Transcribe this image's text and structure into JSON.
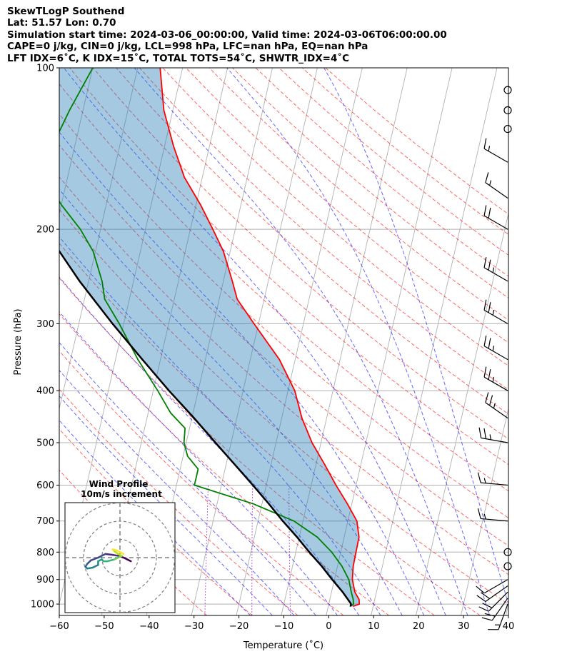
{
  "chart_data": {
    "type": "line",
    "title_lines": [
      "SkewTLogP Southend",
      "Lat: 51.57   Lon: 0.70",
      "Simulation start time: 2024-03-06_00:00:00, Valid time: 2024-03-06T06:00:00.00",
      "CAPE=0 j/kg, CIN=0 j/kg, LCL=998 hPa, LFC=nan hPa, EQ=nan hPa",
      "LFT IDX=6˚C, K IDX=15˚C, TOTAL TOTS=54˚C, SHWTR_IDX=4˚C"
    ],
    "xlabel": "Temperature ($^\\circ$C)",
    "xlabel_display": "Temperature (˚C)",
    "ylabel": "Pressure (hPa)",
    "xlim": [
      -60,
      40
    ],
    "ylim": [
      1050,
      100
    ],
    "yscale": "log",
    "skew": true,
    "grid": true,
    "x_ticks": [
      "−60",
      "−50",
      "−40",
      "−30",
      "−20",
      "−10",
      "0",
      "10",
      "20",
      "30",
      "40"
    ],
    "y_ticks": [
      "1000",
      "900",
      "800",
      "700",
      "600",
      "500",
      "400",
      "300",
      "200",
      "100"
    ],
    "series": [
      {
        "color": "#ff0000",
        "points": [
          [
            1010,
            5.5
          ],
          [
            1000,
            6.8
          ],
          [
            980,
            6.5
          ],
          [
            950,
            5.2
          ],
          [
            900,
            4.0
          ],
          [
            850,
            3.5
          ],
          [
            800,
            3.4
          ],
          [
            750,
            3.3
          ],
          [
            700,
            2.0
          ],
          [
            650,
            -1.0
          ],
          [
            600,
            -4.5
          ],
          [
            550,
            -8.0
          ],
          [
            500,
            -12.0
          ],
          [
            450,
            -15.5
          ],
          [
            400,
            -18.5
          ],
          [
            350,
            -23.5
          ],
          [
            300,
            -31.0
          ],
          [
            270,
            -36.0
          ],
          [
            250,
            -38.0
          ],
          [
            220,
            -41.5
          ],
          [
            200,
            -45.0
          ],
          [
            180,
            -49.0
          ],
          [
            160,
            -54.0
          ],
          [
            140,
            -58.0
          ],
          [
            120,
            -62.0
          ],
          [
            100,
            -65.0
          ]
        ]
      },
      {
        "color": "#008000",
        "points": [
          [
            1010,
            4.8
          ],
          [
            1000,
            5.5
          ],
          [
            980,
            5.2
          ],
          [
            950,
            4.4
          ],
          [
            900,
            3.2
          ],
          [
            850,
            1.0
          ],
          [
            800,
            -2.0
          ],
          [
            750,
            -6.0
          ],
          [
            700,
            -12.0
          ],
          [
            650,
            -22.0
          ],
          [
            600,
            -36.0
          ],
          [
            560,
            -36.0
          ],
          [
            530,
            -39.0
          ],
          [
            500,
            -40.5
          ],
          [
            470,
            -41.0
          ],
          [
            440,
            -45.0
          ],
          [
            400,
            -49.0
          ],
          [
            350,
            -55.0
          ],
          [
            300,
            -61.0
          ],
          [
            270,
            -65.5
          ],
          [
            250,
            -67.0
          ],
          [
            220,
            -70.5
          ],
          [
            200,
            -74.5
          ],
          [
            180,
            -80.0
          ],
          [
            160,
            -85.0
          ],
          [
            140,
            -85.0
          ],
          [
            120,
            -83.0
          ],
          [
            100,
            -80.0
          ]
        ]
      },
      {
        "color": "#000000",
        "points": [
          [
            1010,
            5.0
          ],
          [
            998,
            4.9
          ],
          [
            950,
            2.5
          ],
          [
            900,
            -0.5
          ],
          [
            850,
            -3.5
          ],
          [
            800,
            -7.0
          ],
          [
            750,
            -10.5
          ],
          [
            700,
            -14.5
          ],
          [
            650,
            -18.5
          ],
          [
            600,
            -23.0
          ],
          [
            550,
            -28.0
          ],
          [
            500,
            -33.5
          ],
          [
            450,
            -39.5
          ],
          [
            400,
            -46.5
          ],
          [
            350,
            -54.0
          ],
          [
            300,
            -62.5
          ],
          [
            250,
            -72.0
          ],
          [
            200,
            -82.5
          ],
          [
            150,
            -95.0
          ],
          [
            100,
            -110.0
          ]
        ]
      }
    ],
    "cape_cin_shading": true,
    "wind_barbs": [
      {
        "p": 1000,
        "speed_kt": 15,
        "dir": 200
      },
      {
        "p": 975,
        "speed_kt": 20,
        "dir": 215
      },
      {
        "p": 950,
        "speed_kt": 20,
        "dir": 225
      },
      {
        "p": 925,
        "speed_kt": 20,
        "dir": 235
      },
      {
        "p": 900,
        "speed_kt": 10,
        "dir": 240
      },
      {
        "p": 850,
        "speed_kt": 0,
        "dir": 0
      },
      {
        "p": 800,
        "speed_kt": 0,
        "dir": 0
      },
      {
        "p": 700,
        "speed_kt": 15,
        "dir": 275
      },
      {
        "p": 600,
        "speed_kt": 15,
        "dir": 275
      },
      {
        "p": 500,
        "speed_kt": 25,
        "dir": 280
      },
      {
        "p": 450,
        "speed_kt": 25,
        "dir": 305
      },
      {
        "p": 400,
        "speed_kt": 25,
        "dir": 300
      },
      {
        "p": 350,
        "speed_kt": 25,
        "dir": 300
      },
      {
        "p": 300,
        "speed_kt": 25,
        "dir": 300
      },
      {
        "p": 250,
        "speed_kt": 25,
        "dir": 300
      },
      {
        "p": 200,
        "speed_kt": 20,
        "dir": 300
      },
      {
        "p": 175,
        "speed_kt": 15,
        "dir": 305
      },
      {
        "p": 150,
        "speed_kt": 15,
        "dir": 300
      },
      {
        "p": 130,
        "speed_kt": 0,
        "dir": 0
      },
      {
        "p": 120,
        "speed_kt": 0,
        "dir": 0
      },
      {
        "p": 110,
        "speed_kt": 0,
        "dir": 0
      }
    ],
    "hodograph": {
      "title": "Wind Profile",
      "subtitle": "10m/s increment",
      "ring_ms": [
        10,
        20,
        30
      ],
      "u": [
        6.0,
        4.0,
        2.0,
        -1.0,
        -4.0,
        -8.0,
        -12.0,
        -16.0,
        -18.0,
        -19.0,
        -18.0,
        -15.0,
        -12.0,
        -12.0,
        -10.0,
        -9.0,
        -7.0,
        -5.0,
        -3.0,
        -1.0,
        1.0,
        -1.0,
        -3.0,
        -4.0,
        -2.0,
        2.0
      ],
      "v": [
        -2.0,
        -1.0,
        0.0,
        1.0,
        1.5,
        2.0,
        0.0,
        -1.5,
        -3.5,
        -5.0,
        -6.0,
        -5.5,
        -4.0,
        -2.0,
        -1.0,
        -2.0,
        -2.0,
        -1.5,
        -1.0,
        0.0,
        1.0,
        2.0,
        3.5,
        4.5,
        4.0,
        2.0
      ],
      "colormap": "viridis"
    }
  }
}
